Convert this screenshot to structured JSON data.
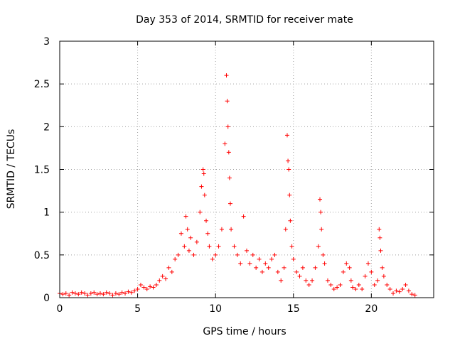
{
  "chart_data": {
    "type": "scatter",
    "title": "Day 353 of 2014, SRMTID for receiver mate",
    "xlabel": "GPS time / hours",
    "ylabel": "SRMTID / TECUs",
    "xlim": [
      0,
      24
    ],
    "ylim": [
      0,
      3
    ],
    "xticks": [
      0,
      5,
      10,
      15,
      20
    ],
    "xtick_labels": [
      "0",
      "5",
      "10",
      "15",
      "20"
    ],
    "yticks": [
      0,
      0.5,
      1,
      1.5,
      2,
      2.5,
      3
    ],
    "ytick_labels": [
      "0",
      "0.5",
      "1",
      "1.5",
      "2",
      "2.5",
      "3"
    ],
    "grid": true,
    "marker": "+",
    "marker_color": "#ff0000",
    "series": [
      {
        "name": "SRMTID",
        "x": [
          0.0,
          0.2,
          0.4,
          0.6,
          0.8,
          1.0,
          1.2,
          1.4,
          1.6,
          1.8,
          2.0,
          2.2,
          2.4,
          2.6,
          2.8,
          3.0,
          3.2,
          3.4,
          3.6,
          3.8,
          4.0,
          4.2,
          4.4,
          4.6,
          4.8,
          5.0,
          5.2,
          5.4,
          5.6,
          5.8,
          6.0,
          6.2,
          6.4,
          6.6,
          6.8,
          7.0,
          7.2,
          7.4,
          7.6,
          7.8,
          8.0,
          8.1,
          8.2,
          8.3,
          8.4,
          8.6,
          8.8,
          9.0,
          9.1,
          9.2,
          9.25,
          9.3,
          9.4,
          9.5,
          9.6,
          9.8,
          10.0,
          10.2,
          10.4,
          10.6,
          10.7,
          10.75,
          10.8,
          10.85,
          10.9,
          10.95,
          11.0,
          11.2,
          11.4,
          11.6,
          11.8,
          12.0,
          12.2,
          12.4,
          12.6,
          12.8,
          13.0,
          13.2,
          13.4,
          13.6,
          13.8,
          14.0,
          14.2,
          14.4,
          14.5,
          14.6,
          14.65,
          14.7,
          14.75,
          14.8,
          14.9,
          15.0,
          15.2,
          15.4,
          15.6,
          15.8,
          16.0,
          16.2,
          16.4,
          16.6,
          16.7,
          16.75,
          16.8,
          16.9,
          17.0,
          17.2,
          17.4,
          17.6,
          17.8,
          18.0,
          18.2,
          18.4,
          18.6,
          18.7,
          18.8,
          19.0,
          19.2,
          19.4,
          19.6,
          19.8,
          20.0,
          20.2,
          20.4,
          20.5,
          20.55,
          20.6,
          20.7,
          20.8,
          21.0,
          21.2,
          21.4,
          21.6,
          21.8,
          22.0,
          22.2,
          22.4,
          22.6,
          22.8
        ],
        "y": [
          0.05,
          0.04,
          0.05,
          0.03,
          0.06,
          0.05,
          0.04,
          0.06,
          0.05,
          0.03,
          0.05,
          0.06,
          0.04,
          0.05,
          0.04,
          0.06,
          0.05,
          0.03,
          0.05,
          0.04,
          0.06,
          0.05,
          0.07,
          0.06,
          0.08,
          0.1,
          0.15,
          0.12,
          0.1,
          0.13,
          0.12,
          0.15,
          0.2,
          0.25,
          0.22,
          0.35,
          0.3,
          0.45,
          0.5,
          0.75,
          0.6,
          0.95,
          0.8,
          0.55,
          0.7,
          0.5,
          0.65,
          1.0,
          1.3,
          1.5,
          1.45,
          1.2,
          0.9,
          0.75,
          0.6,
          0.45,
          0.5,
          0.6,
          0.8,
          1.8,
          2.6,
          2.3,
          2.0,
          1.7,
          1.4,
          1.1,
          0.8,
          0.6,
          0.5,
          0.4,
          0.95,
          0.55,
          0.4,
          0.5,
          0.35,
          0.45,
          0.3,
          0.4,
          0.35,
          0.45,
          0.5,
          0.3,
          0.2,
          0.35,
          0.8,
          1.9,
          1.6,
          1.5,
          1.2,
          0.9,
          0.6,
          0.45,
          0.3,
          0.25,
          0.35,
          0.2,
          0.15,
          0.2,
          0.35,
          0.6,
          1.15,
          1.0,
          0.8,
          0.5,
          0.4,
          0.2,
          0.15,
          0.1,
          0.12,
          0.15,
          0.3,
          0.4,
          0.35,
          0.2,
          0.12,
          0.1,
          0.15,
          0.1,
          0.25,
          0.4,
          0.3,
          0.15,
          0.2,
          0.8,
          0.7,
          0.55,
          0.35,
          0.25,
          0.15,
          0.1,
          0.05,
          0.08,
          0.07,
          0.1,
          0.15,
          0.08,
          0.04,
          0.03
        ]
      }
    ]
  }
}
